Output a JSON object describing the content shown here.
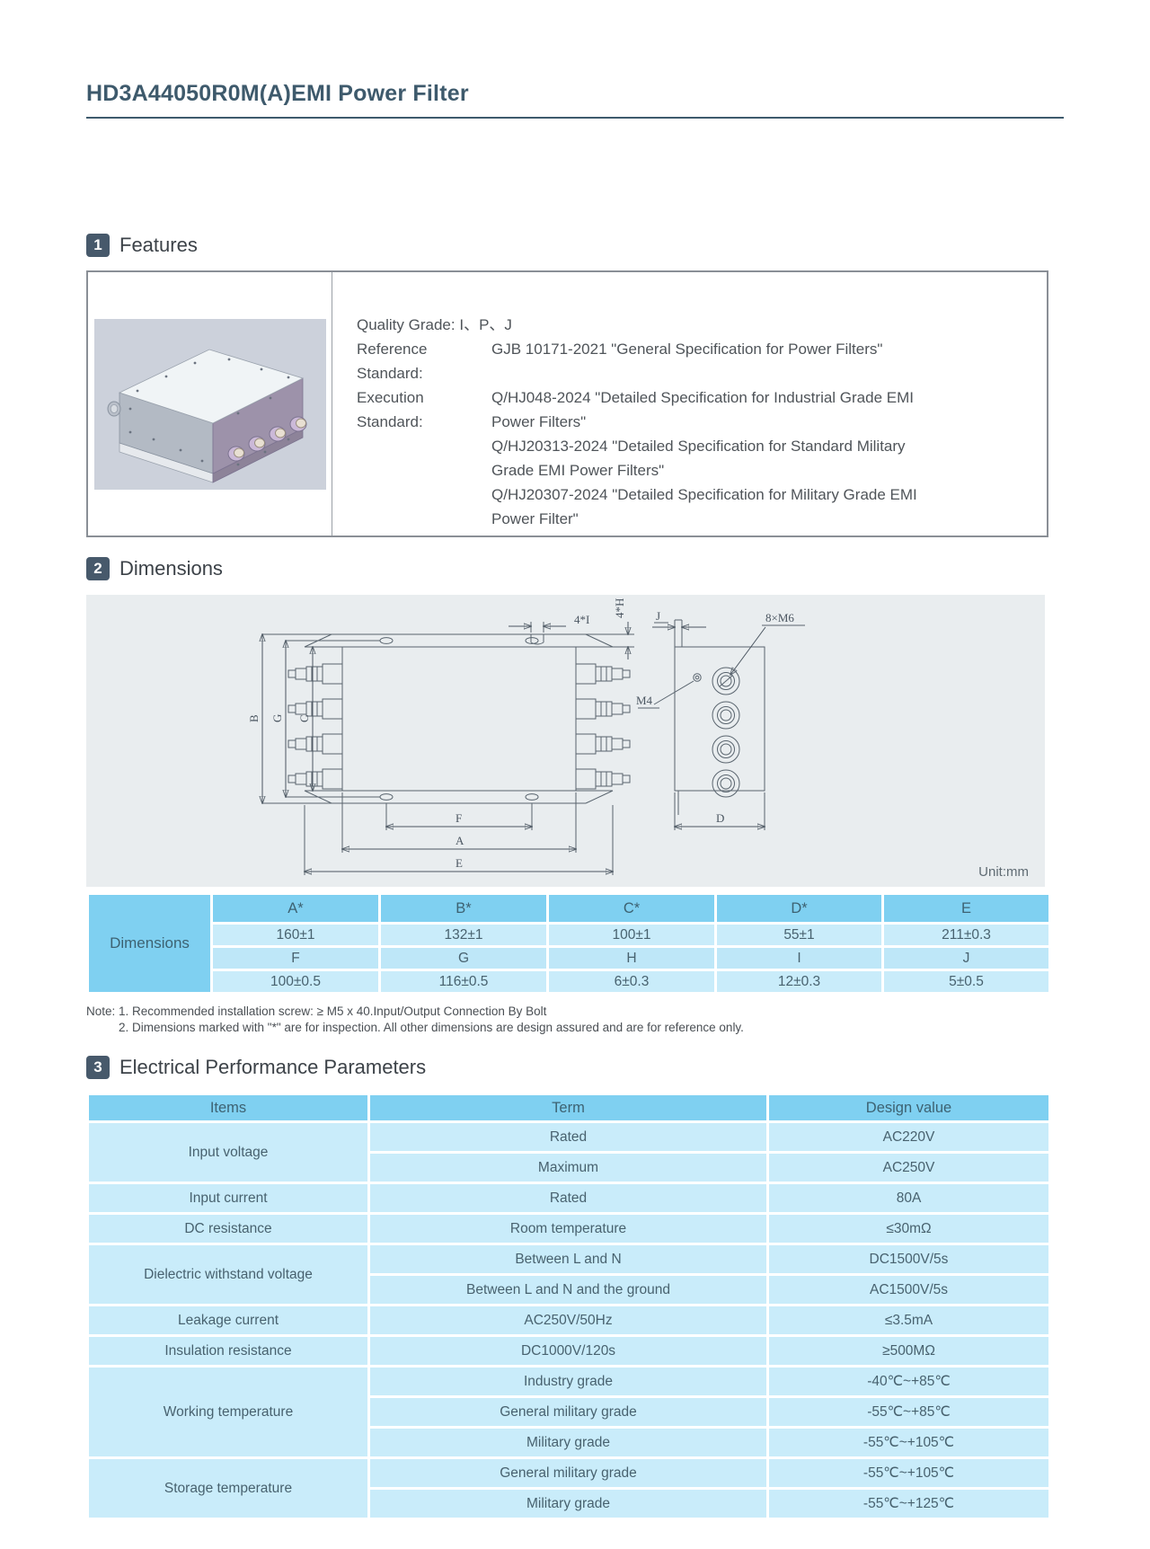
{
  "page": {
    "title": "HD3A44050R0M(A)EMI Power Filter"
  },
  "sections": [
    {
      "number": "1",
      "title": "Features"
    },
    {
      "number": "2",
      "title": "Dimensions"
    },
    {
      "number": "3",
      "title": "Electrical Performance Parameters"
    }
  ],
  "features": {
    "quality_label": "Quality Grade:",
    "quality_value": "I、P、J",
    "reference_label": "Reference Standard:",
    "reference_value": "GJB 10171-2021 \"General Specification for Power Filters\"",
    "execution_label": "Execution Standard:",
    "execution_lines": [
      "Q/HJ048-2024 \"Detailed Specification for Industrial Grade EMI Power Filters\"",
      "Q/HJ20313-2024 \"Detailed Specification for Standard Military Grade EMI Power Filters\"",
      "Q/HJ20307-2024 \"Detailed Specification for Military Grade EMI Power Filter\""
    ]
  },
  "drawing": {
    "unit": "Unit:mm",
    "labels": {
      "height_b": "B",
      "height_g": "G",
      "height_c": "C",
      "width_f": "F",
      "width_a": "A",
      "width_e": "E",
      "depth_d": "D",
      "wall_j": "J",
      "slot_top": "4*I",
      "slot_side": "4*H",
      "terminal_thread": "8×M6",
      "mount_hole": "M4"
    }
  },
  "dimensions_table": {
    "row_label": "Dimensions",
    "header": [
      "A*",
      "B*",
      "C*",
      "D*",
      "E"
    ],
    "rows": [
      [
        "160±1",
        "132±1",
        "100±1",
        "55±1",
        "211±0.3"
      ],
      [
        "F",
        "G",
        "H",
        "I",
        "J"
      ],
      [
        "100±0.5",
        "116±0.5",
        "6±0.3",
        "12±0.3",
        "5±0.5"
      ]
    ]
  },
  "notes": [
    "Note: 1. Recommended installation screw: ≥ M5 x 40.Input/Output Connection By Bolt",
    "2. Dimensions marked with \"*\" are for inspection. All other dimensions are design assured and are for reference only."
  ],
  "electrical_table": {
    "header": [
      "Items",
      "Term",
      "Design value"
    ],
    "groups": [
      {
        "item": "Input voltage",
        "rows": [
          [
            "Rated",
            "AC220V"
          ],
          [
            "Maximum",
            "AC250V"
          ]
        ]
      },
      {
        "item": "Input current",
        "rows": [
          [
            "Rated",
            "80A"
          ]
        ]
      },
      {
        "item": "DC resistance",
        "rows": [
          [
            "Room temperature",
            "≤30mΩ"
          ]
        ]
      },
      {
        "item": "Dielectric withstand voltage",
        "rows": [
          [
            "Between L and N",
            "DC1500V/5s"
          ],
          [
            "Between L and N and the ground",
            "AC1500V/5s"
          ]
        ]
      },
      {
        "item": "Leakage current",
        "rows": [
          [
            "AC250V/50Hz",
            "≤3.5mA"
          ]
        ]
      },
      {
        "item": "Insulation resistance",
        "rows": [
          [
            "DC1000V/120s",
            "≥500MΩ"
          ]
        ]
      },
      {
        "item": "Working temperature",
        "rows": [
          [
            "Industry grade",
            "-40℃~+85℃"
          ],
          [
            "General military grade",
            "-55℃~+85℃"
          ],
          [
            "Military grade",
            "-55℃~+105℃"
          ]
        ]
      },
      {
        "item": "Storage temperature",
        "rows": [
          [
            "General military grade",
            "-55℃~+105℃"
          ],
          [
            "Military grade",
            "-55℃~+125℃"
          ]
        ]
      }
    ]
  },
  "colors": {
    "heading": "#3E5A6C",
    "badge": "#47596B",
    "table_header_blue": "#7FD0F1",
    "table_light_blue": "#C9ECFA",
    "table_alt_blue": "#BEE7F8",
    "drawing_background": "#E9EDEF"
  }
}
